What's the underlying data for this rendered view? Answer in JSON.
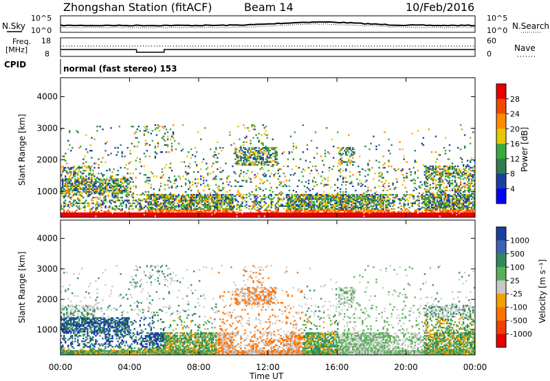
{
  "header": {
    "title": "Zhongshan Station (fitACF)",
    "beam": "Beam 14",
    "date": "10/Feb/2016"
  },
  "strip": {
    "nsky_label": "N.Sky",
    "nsky_ticks": [
      "10^5",
      "10^0"
    ],
    "nsearch_label": "N.Search",
    "nsearch_ticks": [
      "10^5",
      "10^0"
    ],
    "freq_label_line1": "Freq.",
    "freq_label_line2": "[MHz]",
    "freq_ticks": [
      "18",
      "8"
    ],
    "nave_label": "Nave",
    "nave_ticks": [
      "60",
      "0"
    ],
    "cpid_label": "CPID",
    "cpid_value": "normal (fast stereo) 153"
  },
  "chart_data": [
    {
      "type": "heatmap",
      "name": "power-panel",
      "ylabel": "Slant Range [km]",
      "yticks": [
        1000,
        2000,
        3000,
        4000
      ],
      "ylim": [
        180,
        4600
      ],
      "xticks_hours": [
        0,
        4,
        8,
        12,
        16,
        20,
        24
      ],
      "colorbar": {
        "label": "Power [dB]",
        "ticks": [
          "28",
          "24",
          "20",
          "16",
          "12",
          "8",
          "4"
        ],
        "colors": [
          "#e60000",
          "#f04a00",
          "#ff8c00",
          "#e6c800",
          "#3aaa3a",
          "#2e7d4f",
          "#1a3fa0",
          "#0000ff"
        ]
      }
    },
    {
      "type": "heatmap",
      "name": "velocity-panel",
      "ylabel": "Slant Range [km]",
      "yticks": [
        1000,
        2000,
        3000,
        4000
      ],
      "ylim": [
        180,
        4600
      ],
      "xticks_hours": [
        0,
        4,
        8,
        12,
        16,
        20,
        24
      ],
      "xtick_labels": [
        "00:00",
        "04:00",
        "08:00",
        "12:00",
        "16:00",
        "20:00",
        "00:00"
      ],
      "xlabel": "Time UT",
      "colorbar": {
        "label": "Velocity [m s⁻¹]",
        "ticks": [
          "1000",
          "500",
          "100",
          "25",
          "-25",
          "-100",
          "-500",
          "-1000"
        ],
        "colors": [
          "#1a3fa0",
          "#3c64b4",
          "#2e8b57",
          "#58b058",
          "#c8c8c8",
          "#f0a000",
          "#ff7000",
          "#f04000",
          "#e60000"
        ]
      }
    }
  ],
  "colors": {
    "power_red": "#e60000",
    "power_orange": "#ff8c00",
    "power_yellow": "#e6c800",
    "power_green": "#3aaa3a",
    "power_blue": "#1a3fa0",
    "vel_blue": "#1a3fa0",
    "vel_green": "#2e8b57",
    "vel_gray": "#c8c8c8",
    "vel_orange": "#ff7000",
    "vel_red": "#e60000"
  }
}
